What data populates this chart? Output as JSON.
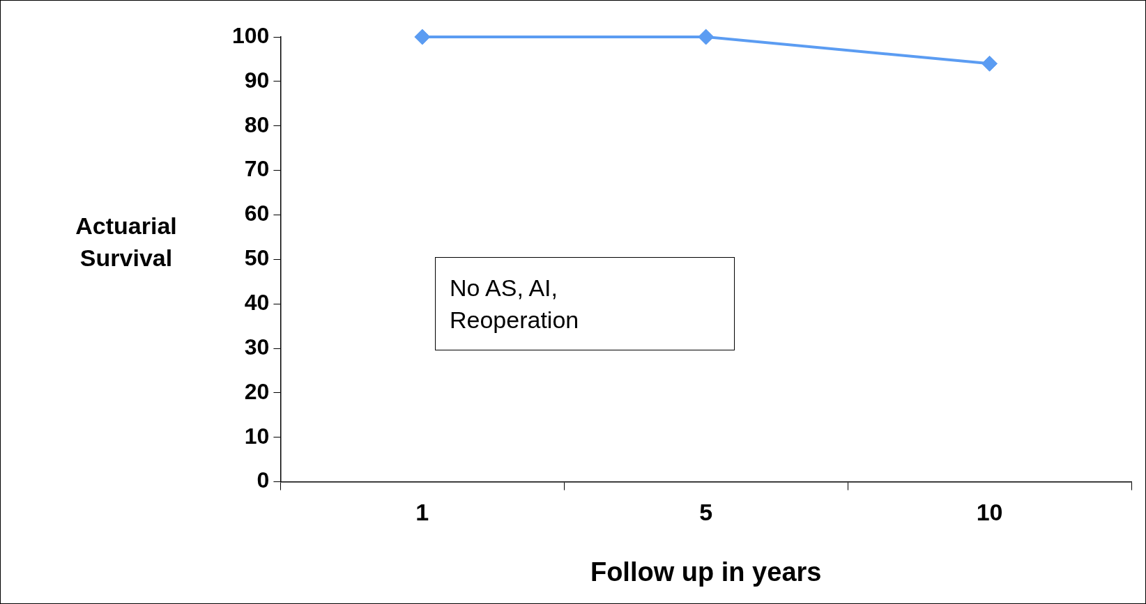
{
  "chart_data": {
    "type": "line",
    "ylabel": "Actuarial Survival",
    "xlabel": "Follow up in years",
    "categories": [
      "1",
      "5",
      "10"
    ],
    "series": [
      {
        "color": "#5b9cf2",
        "values": [
          100,
          100,
          94
        ]
      }
    ],
    "ylim": [
      0,
      100
    ],
    "yticks": [
      0,
      10,
      20,
      30,
      40,
      50,
      60,
      70,
      80,
      90,
      100
    ],
    "grid": false,
    "legend": false,
    "marker": "diamond",
    "line_style": "solid",
    "annotations": [
      "No AS, AI, Reoperation"
    ]
  }
}
